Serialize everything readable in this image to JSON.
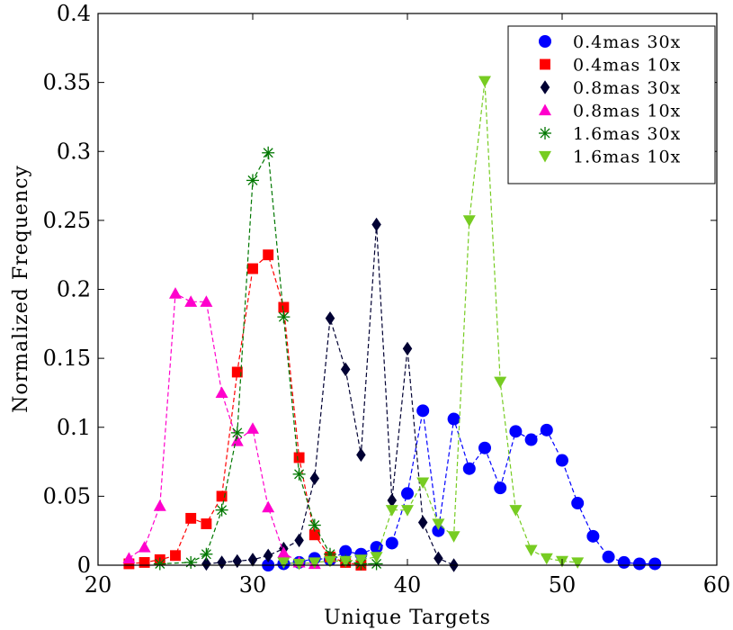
{
  "chart_data": {
    "type": "line",
    "xlabel": "Unique Targets",
    "ylabel": "Normalized Frequency",
    "xlim": [
      20,
      60
    ],
    "ylim": [
      0,
      0.4
    ],
    "x_ticks": [
      20,
      30,
      40,
      50,
      60
    ],
    "y_ticks": [
      0,
      0.05,
      0.1,
      0.15,
      0.2,
      0.25,
      0.3,
      0.35,
      0.4
    ],
    "x_tick_labels": [
      "20",
      "30",
      "40",
      "50",
      "60"
    ],
    "y_tick_labels": [
      "0",
      "0.05",
      "0.1",
      "0.15",
      "0.2",
      "0.25",
      "0.3",
      "0.35",
      "0.4"
    ],
    "grid": false,
    "line_style": "dashed",
    "legend_position": "top-right",
    "series": [
      {
        "name": "0.4mas 30x",
        "color": "#0000ff",
        "marker": "circle",
        "x": [
          31,
          32,
          33,
          34,
          35,
          36,
          37,
          38,
          39,
          40,
          41,
          42,
          43,
          44,
          45,
          46,
          47,
          48,
          49,
          50,
          51,
          52,
          53,
          54,
          55,
          56
        ],
        "y": [
          0.0,
          0.001,
          0.002,
          0.005,
          0.004,
          0.01,
          0.008,
          0.013,
          0.016,
          0.052,
          0.112,
          0.025,
          0.106,
          0.07,
          0.085,
          0.056,
          0.097,
          0.091,
          0.098,
          0.076,
          0.045,
          0.021,
          0.006,
          0.002,
          0.001,
          0.001
        ]
      },
      {
        "name": "0.4mas 10x",
        "color": "#ff0000",
        "marker": "square",
        "x": [
          22,
          23,
          24,
          25,
          26,
          27,
          28,
          29,
          30,
          31,
          32,
          33,
          34,
          35,
          36,
          37
        ],
        "y": [
          0.001,
          0.002,
          0.004,
          0.007,
          0.034,
          0.03,
          0.05,
          0.14,
          0.215,
          0.225,
          0.187,
          0.078,
          0.022,
          0.006,
          0.002,
          0.0
        ]
      },
      {
        "name": "0.8mas 30x",
        "color": "#000033",
        "marker": "diamond",
        "x": [
          27,
          28,
          29,
          30,
          31,
          32,
          33,
          34,
          35,
          36,
          37,
          38,
          39,
          40,
          41,
          42,
          43
        ],
        "y": [
          0.001,
          0.002,
          0.003,
          0.004,
          0.007,
          0.012,
          0.018,
          0.063,
          0.179,
          0.142,
          0.08,
          0.247,
          0.047,
          0.157,
          0.031,
          0.005,
          0.0
        ]
      },
      {
        "name": "0.8mas 10x",
        "color": "#ff00cc",
        "marker": "triangle-up",
        "x": [
          22,
          23,
          24,
          25,
          26,
          27,
          28,
          29,
          30,
          31,
          32,
          33,
          34
        ],
        "y": [
          0.005,
          0.013,
          0.043,
          0.197,
          0.191,
          0.191,
          0.125,
          0.09,
          0.099,
          0.042,
          0.009,
          0.002,
          0.001
        ]
      },
      {
        "name": "1.6mas 30x",
        "color": "#007700",
        "marker": "asterisk",
        "x": [
          24,
          26,
          27,
          28,
          29,
          30,
          31,
          32,
          33,
          34,
          35,
          36,
          37,
          38
        ],
        "y": [
          0.001,
          0.002,
          0.008,
          0.04,
          0.096,
          0.279,
          0.299,
          0.18,
          0.066,
          0.029,
          0.008,
          0.003,
          0.001,
          0.001
        ]
      },
      {
        "name": "1.6mas 10x",
        "color": "#77cc22",
        "marker": "triangle-down",
        "x": [
          32,
          33,
          34,
          35,
          36,
          37,
          38,
          39,
          40,
          41,
          42,
          43,
          44,
          45,
          46,
          47,
          48,
          49,
          50,
          51
        ],
        "y": [
          0.002,
          0.001,
          0.002,
          0.003,
          0.003,
          0.004,
          0.006,
          0.04,
          0.04,
          0.06,
          0.03,
          0.021,
          0.25,
          0.351,
          0.133,
          0.04,
          0.011,
          0.005,
          0.003,
          0.002
        ]
      }
    ]
  }
}
